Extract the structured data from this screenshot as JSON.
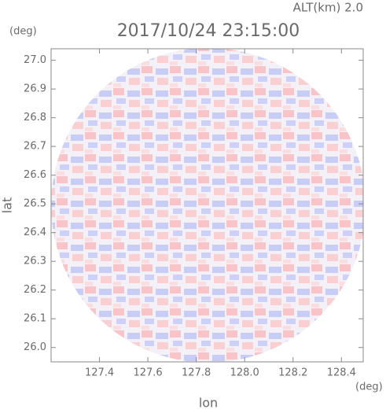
{
  "chart_data": {
    "type": "radar-ppi",
    "title": "2017/10/24 23:15:00",
    "subtitle": "ALT(km)  2.0",
    "x_label": "lon",
    "y_label": "lat",
    "x_unit": "(deg)",
    "y_unit": "(deg)",
    "xlim": [
      127.2,
      128.49
    ],
    "ylim": [
      25.95,
      27.04
    ],
    "xticks": [
      127.4,
      127.6,
      127.8,
      {
        "value": 128,
        "label": "128.0"
      },
      128.2,
      128.4
    ],
    "yticks": [
      {
        "value": 26,
        "label": "26.0"
      },
      26.1,
      26.2,
      26.3,
      26.4,
      26.5,
      26.6,
      26.7,
      26.8,
      26.9,
      {
        "value": 27,
        "label": "27.0"
      }
    ]
  }
}
